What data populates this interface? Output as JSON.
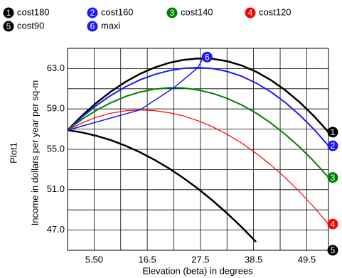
{
  "chart_data": {
    "type": "line",
    "y_title": "Plot1",
    "y_label": "Income in dollars per year per sq-m",
    "x_label": "Elevation (beta) in degrees",
    "x": [
      0,
      3,
      6,
      9,
      12,
      15,
      18,
      21,
      24,
      27,
      30,
      33,
      36,
      39,
      42,
      45,
      48,
      51,
      54
    ],
    "series": [
      {
        "name": "cost180",
        "marker": "1",
        "color": "#000000",
        "values": [
          56.9,
          58.34,
          59.61,
          60.73,
          61.68,
          62.47,
          63.09,
          63.56,
          63.86,
          63.99,
          63.96,
          63.73,
          63.31,
          62.69,
          61.88,
          60.88,
          59.68,
          58.29,
          56.7
        ]
      },
      {
        "name": "cost160",
        "marker": "2",
        "color": "#1a1aff",
        "values": [
          56.9,
          58.2,
          59.35,
          60.35,
          61.19,
          61.88,
          62.41,
          62.79,
          63.02,
          63.1,
          63.0,
          62.72,
          62.24,
          61.57,
          60.71,
          59.66,
          58.41,
          56.98,
          55.35
        ]
      },
      {
        "name": "cost140",
        "marker": "3",
        "color": "#008000",
        "values": [
          56.9,
          57.97,
          58.88,
          59.63,
          60.23,
          60.67,
          60.96,
          61.09,
          61.07,
          60.88,
          60.54,
          60.05,
          59.4,
          58.59,
          57.63,
          56.51,
          55.23,
          53.8,
          52.21
        ]
      },
      {
        "name": "cost120",
        "marker": "4",
        "color": "#ff0000",
        "values": [
          56.9,
          57.62,
          58.18,
          58.58,
          58.82,
          58.9,
          58.83,
          58.63,
          58.3,
          57.83,
          57.23,
          56.49,
          55.62,
          54.62,
          53.48,
          52.21,
          50.81,
          49.27,
          47.6
        ]
      },
      {
        "name": "cost90",
        "marker": "5",
        "color": "#000000",
        "values": [
          56.9,
          56.67,
          56.33,
          55.9,
          55.35,
          54.71,
          53.96,
          53.11,
          52.15,
          51.1,
          49.93,
          48.67,
          47.3,
          45.83,
          null,
          null,
          null,
          null,
          null
        ]
      },
      {
        "name": "maxi",
        "marker": "6",
        "color": "#1a1aff",
        "x": [
          0,
          15,
          22,
          27,
          28
        ],
        "values": [
          56.9,
          58.9,
          61.1,
          63.1,
          64.0
        ]
      }
    ],
    "xlim": [
      0,
      54
    ],
    "ylim": [
      45,
      65
    ],
    "xticks": [
      {
        "value": 5.5,
        "label": "5.50"
      },
      16.5,
      27.5,
      38.5,
      49.5
    ],
    "yticks": [
      {
        "value": 47,
        "label": "47.0"
      },
      {
        "value": 51,
        "label": "51.0"
      },
      {
        "value": 55,
        "label": "55.0"
      },
      {
        "value": 59,
        "label": "59.0"
      },
      {
        "value": 63,
        "label": "63.0"
      }
    ],
    "x_minor_ticks": [
      11,
      22,
      33,
      44
    ],
    "y_minor_ticks": [
      49,
      53,
      57,
      61
    ],
    "grid": true,
    "legend": "top"
  }
}
